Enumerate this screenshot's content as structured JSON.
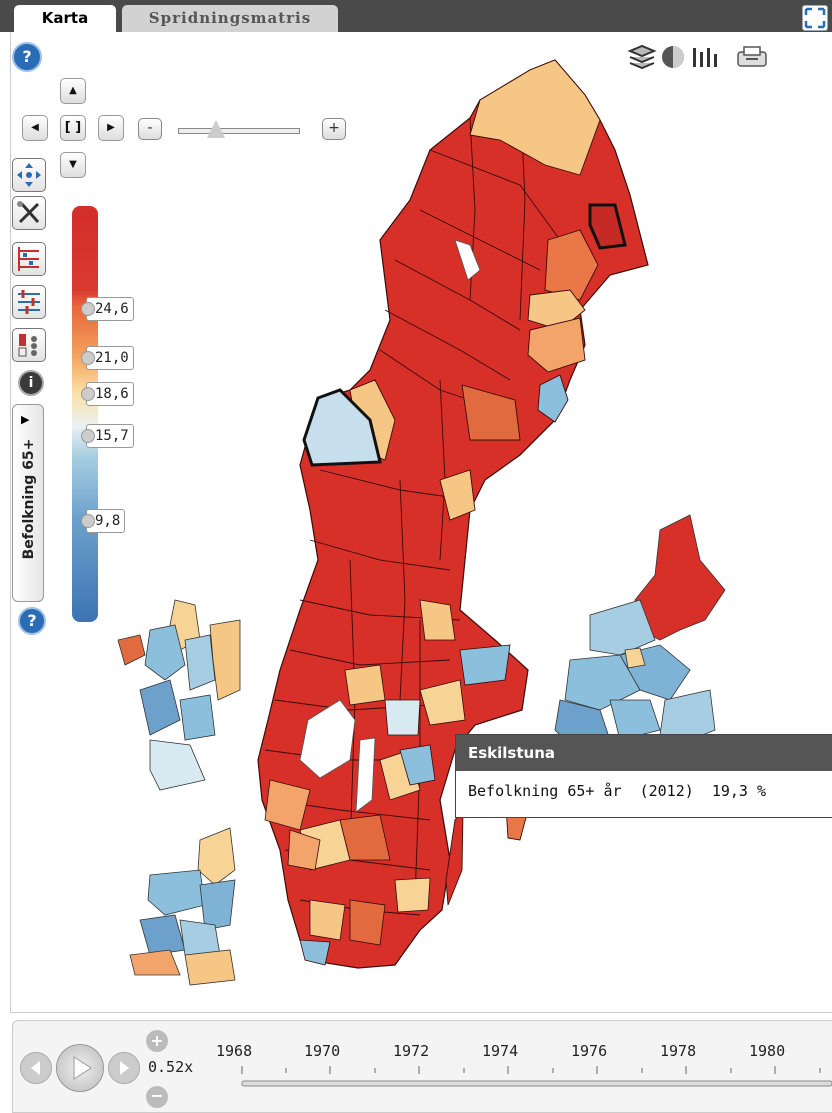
{
  "tabs": [
    {
      "label": "Karta",
      "active": true
    },
    {
      "label": "Spridningsmatris",
      "active": false
    }
  ],
  "map": {
    "pan_center_label": "[ ]",
    "zoom_out_label": "-",
    "zoom_in_label": "+"
  },
  "help_label": "?",
  "info_label": "i",
  "legend": {
    "variable": "Befolkning 65+",
    "ticks": [
      "24,6",
      "21,0",
      "18,6",
      "15,7",
      "9,8"
    ],
    "colors": {
      "high": "#d42d2a",
      "mid": "#fbe1a6",
      "low": "#3b74b3"
    }
  },
  "tooltip": {
    "title": "Eskilstuna",
    "indicator": "Befolkning 65+ år",
    "year": "(2012)",
    "value": "19,3 %"
  },
  "timeline": {
    "speed": "0.52x",
    "years": [
      "1968",
      "1970",
      "1972",
      "1974",
      "1976",
      "1978",
      "1980"
    ]
  }
}
